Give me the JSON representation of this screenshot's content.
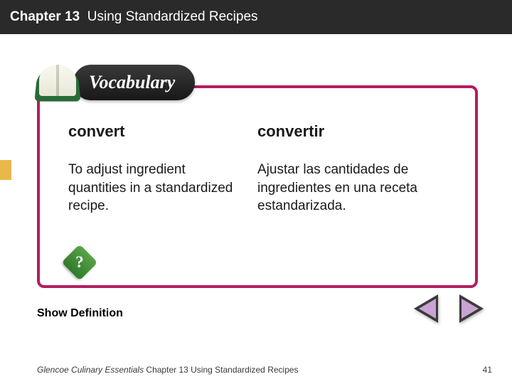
{
  "header": {
    "chapter_label": "Chapter 13",
    "chapter_title": "Using Standardized Recipes"
  },
  "colors": {
    "header_bg": "#2a2a2a",
    "frame_border": "#b21e5e",
    "side_tab": "#e8b84a",
    "arrow_fill": "#c9a3d4",
    "book_green": "#2a6b3a"
  },
  "vocab_badge": {
    "label": "Vocabulary"
  },
  "terms": {
    "left": {
      "word": "convert",
      "definition": "To adjust ingredient quantities in a standardized recipe."
    },
    "right": {
      "word": "convertir",
      "definition": "Ajustar las cantidades de ingredientes en una receta estandarizada."
    }
  },
  "show_definition_label": "Show Definition",
  "question_icon_glyph": "?",
  "footer": {
    "book_title": "Glencoe Culinary Essentials",
    "chapter_text": "Chapter 13 Using Standardized Recipes",
    "page_number": "41"
  }
}
